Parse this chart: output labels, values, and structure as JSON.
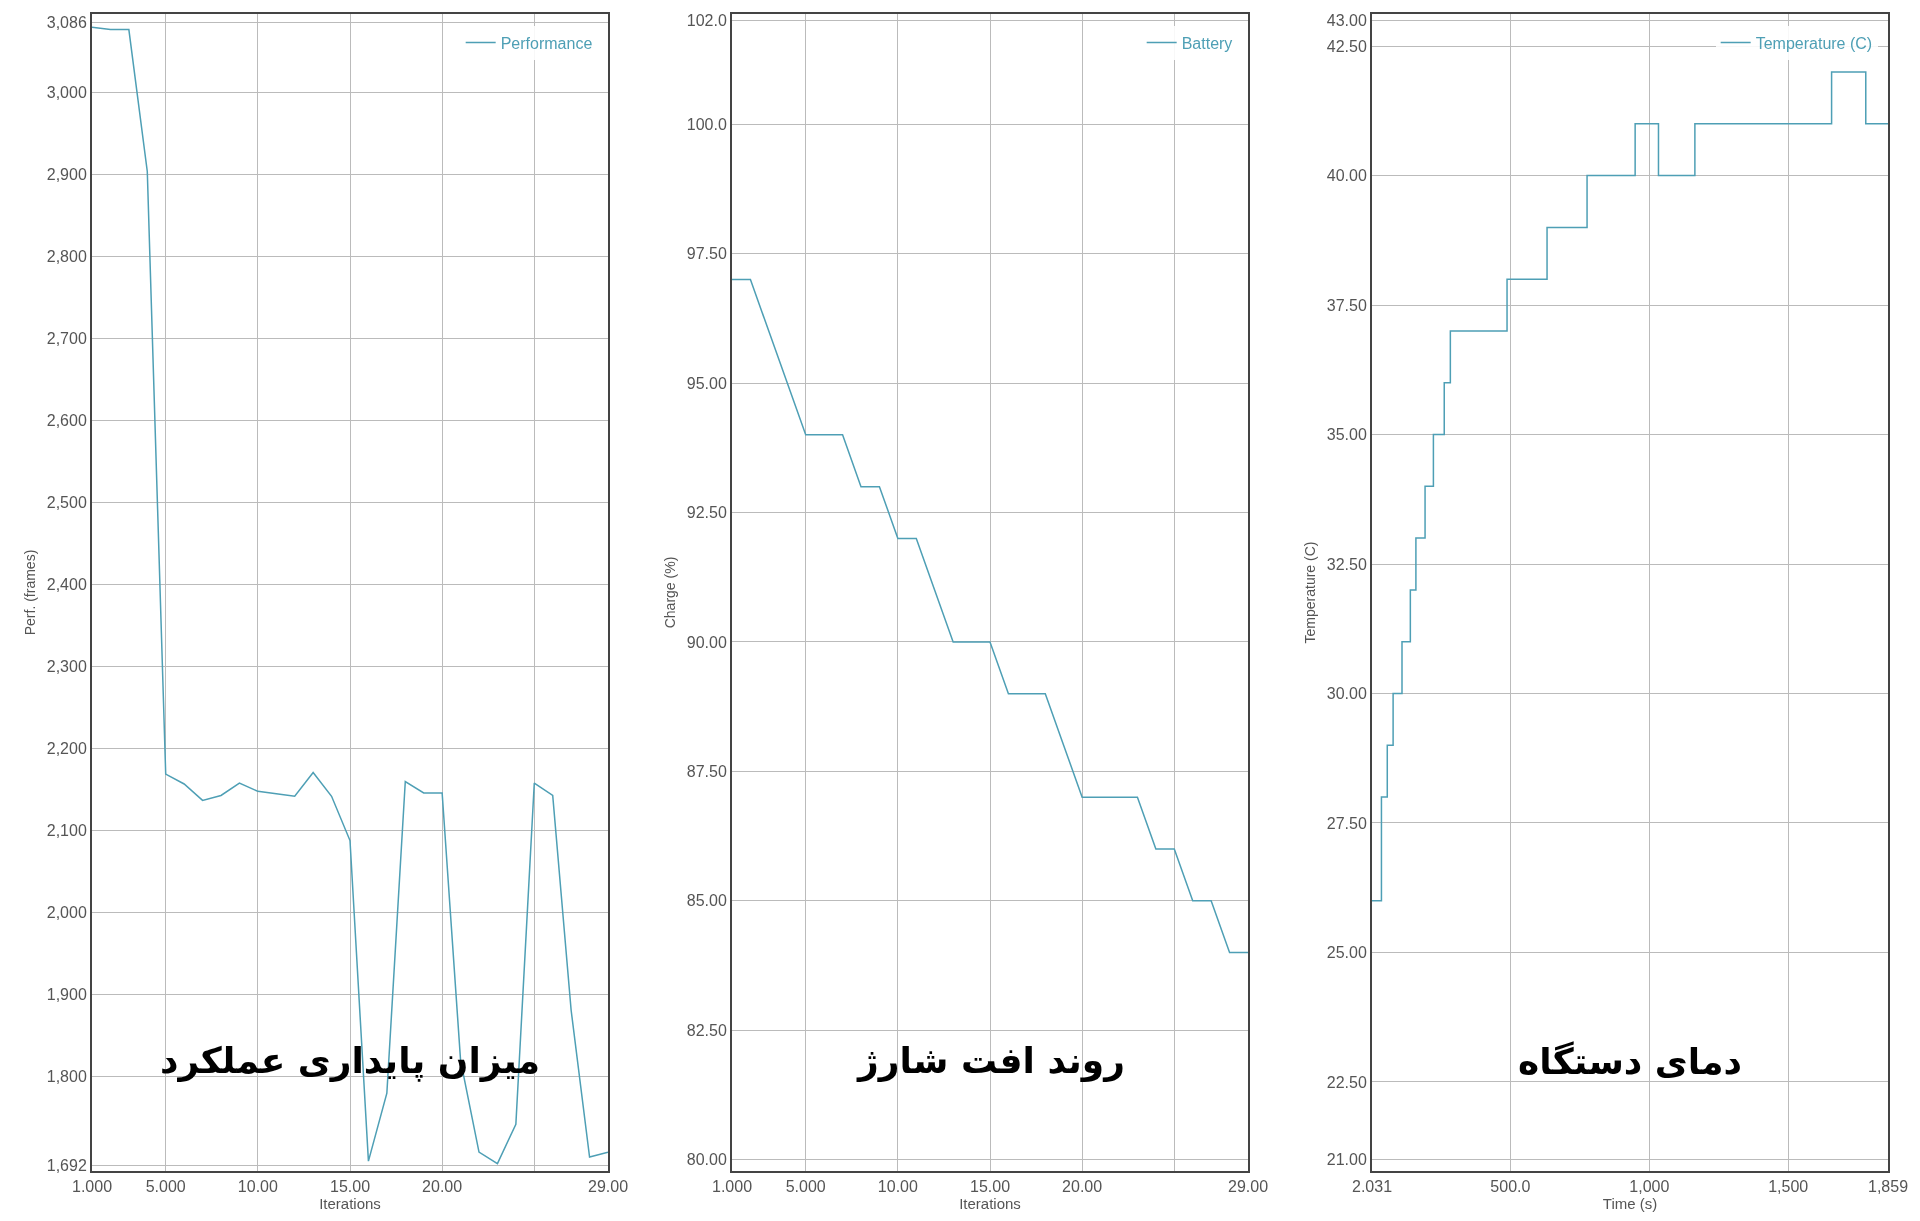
{
  "chart_data": [
    {
      "type": "line",
      "title": "میزان پایداری عملکرد",
      "xlabel": "Iterations",
      "ylabel": "Perf. (frames)",
      "x": [
        1,
        2,
        3,
        4,
        5,
        6,
        7,
        8,
        9,
        10,
        11,
        12,
        13,
        14,
        15,
        16,
        17,
        18,
        19,
        20,
        21,
        22,
        23,
        24,
        25,
        26,
        27,
        28,
        29
      ],
      "series": [
        {
          "name": "Performance",
          "color": "#4e9fb5",
          "values": [
            3080,
            3077,
            3077,
            2904,
            2169,
            2157,
            2137,
            2143,
            2158,
            2148,
            2145,
            2142,
            2171,
            2142,
            2088,
            1697,
            1780,
            2160,
            2146,
            2146,
            1820,
            1708,
            1694,
            1742,
            2158,
            2143,
            1881,
            1702,
            1708
          ]
        }
      ],
      "xlim": [
        1,
        29
      ],
      "xticks": [
        {
          "value": 1,
          "label": "1.000"
        },
        {
          "value": 5,
          "label": "5.000"
        },
        {
          "value": 10,
          "label": "10.00"
        },
        {
          "value": 15,
          "label": "15.00"
        },
        {
          "value": 20,
          "label": "20.00"
        },
        {
          "value": 25,
          "label": null
        },
        {
          "value": 29,
          "label": "29.00"
        }
      ],
      "ylim": [
        1685,
        3096
      ],
      "yticks": [
        {
          "value": 1692,
          "label": "1,692"
        },
        {
          "value": 1800,
          "label": "1,800"
        },
        {
          "value": 1900,
          "label": "1,900"
        },
        {
          "value": 2000,
          "label": "2,000"
        },
        {
          "value": 2100,
          "label": "2,100"
        },
        {
          "value": 2200,
          "label": "2,200"
        },
        {
          "value": 2300,
          "label": "2,300"
        },
        {
          "value": 2400,
          "label": "2,400"
        },
        {
          "value": 2500,
          "label": "2,500"
        },
        {
          "value": 2600,
          "label": "2,600"
        },
        {
          "value": 2700,
          "label": "2,700"
        },
        {
          "value": 2800,
          "label": "2,800"
        },
        {
          "value": 2900,
          "label": "2,900"
        },
        {
          "value": 3000,
          "label": "3,000"
        },
        {
          "value": 3086,
          "label": "3,086"
        }
      ],
      "grid": true,
      "legend": "top right"
    },
    {
      "type": "line",
      "title": "روند افت شارژ",
      "xlabel": "Iterations",
      "ylabel": "Charge (%)",
      "x": [
        1,
        2,
        3,
        4,
        5,
        6,
        7,
        8,
        9,
        10,
        11,
        12,
        13,
        14,
        15,
        16,
        17,
        18,
        19,
        20,
        21,
        22,
        23,
        24,
        25,
        26,
        27,
        28,
        29
      ],
      "series": [
        {
          "name": "Battery",
          "color": "#4e9fb5",
          "values": [
            97,
            97,
            96,
            95,
            94,
            94,
            94,
            93,
            93,
            92,
            92,
            91,
            90,
            90,
            90,
            89,
            89,
            89,
            88,
            87,
            87,
            87,
            87,
            86,
            86,
            85,
            85,
            84,
            84
          ]
        }
      ],
      "xlim": [
        1,
        29
      ],
      "xticks": [
        {
          "value": 1,
          "label": "1.000"
        },
        {
          "value": 5,
          "label": "5.000"
        },
        {
          "value": 10,
          "label": "10.00"
        },
        {
          "value": 15,
          "label": "15.00"
        },
        {
          "value": 20,
          "label": "20.00"
        },
        {
          "value": 25,
          "label": null
        },
        {
          "value": 29,
          "label": "29.00"
        }
      ],
      "ylim": [
        79.78,
        102.13
      ],
      "yticks": [
        {
          "value": 80,
          "label": "80.00"
        },
        {
          "value": 82.5,
          "label": "82.50"
        },
        {
          "value": 85,
          "label": "85.00"
        },
        {
          "value": 87.5,
          "label": "87.50"
        },
        {
          "value": 90,
          "label": "90.00"
        },
        {
          "value": 92.5,
          "label": "92.50"
        },
        {
          "value": 95,
          "label": "95.00"
        },
        {
          "value": 97.5,
          "label": "97.50"
        },
        {
          "value": 100,
          "label": "100.0"
        },
        {
          "value": 102,
          "label": "102.0"
        }
      ],
      "grid": true,
      "legend": "top right"
    },
    {
      "type": "step",
      "title": "دمای دستگاه",
      "xlabel": "Time (s)",
      "ylabel": "Temperature (C)",
      "x": [
        2.031,
        36,
        57,
        78,
        110,
        140,
        160,
        193,
        223,
        262,
        284,
        488,
        632,
        776,
        949,
        1033,
        1164,
        1656,
        1779,
        1859
      ],
      "series": [
        {
          "name": "Temperature (C)",
          "color": "#4e9fb5",
          "values": [
            26,
            28,
            29,
            30,
            31,
            32,
            33,
            34,
            35,
            36,
            37,
            38,
            39,
            40,
            41,
            40,
            41,
            42,
            41,
            41
          ]
        }
      ],
      "xlim": [
        2.031,
        1859
      ],
      "xticks": [
        {
          "value": 2.031,
          "label": "2.031"
        },
        {
          "value": 500,
          "label": "500.0"
        },
        {
          "value": 1000,
          "label": "1,000"
        },
        {
          "value": 1500,
          "label": "1,500"
        },
        {
          "value": 1859,
          "label": "1,859"
        }
      ],
      "ylim": [
        20.78,
        43.12
      ],
      "yticks": [
        {
          "value": 21,
          "label": "21.00"
        },
        {
          "value": 22.5,
          "label": "22.50"
        },
        {
          "value": 25,
          "label": "25.00"
        },
        {
          "value": 27.5,
          "label": "27.50"
        },
        {
          "value": 30,
          "label": "30.00"
        },
        {
          "value": 32.5,
          "label": "32.50"
        },
        {
          "value": 35,
          "label": "35.00"
        },
        {
          "value": 37.5,
          "label": "37.50"
        },
        {
          "value": 40,
          "label": "40.00"
        },
        {
          "value": 42.5,
          "label": "42.50"
        },
        {
          "value": 43,
          "label": "43.00"
        }
      ],
      "grid": true,
      "legend": "top right"
    }
  ]
}
